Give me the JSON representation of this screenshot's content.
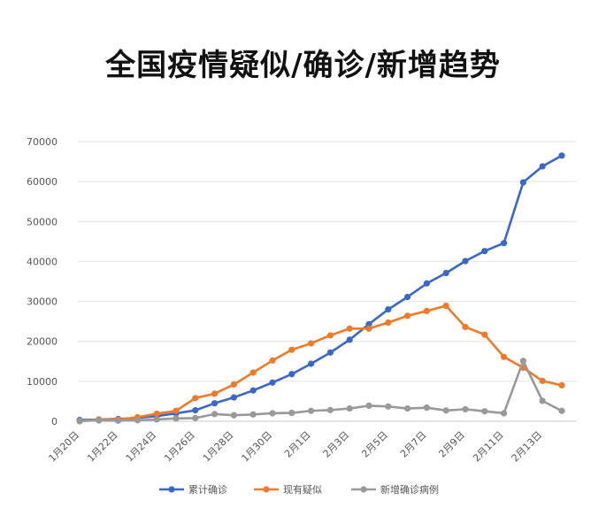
{
  "chart_data": {
    "type": "line",
    "title": "全国疫情疑似/确诊/新增趋势",
    "xlabel": "",
    "ylabel": "",
    "ylim": [
      0,
      70000
    ],
    "yticks": [
      0,
      10000,
      20000,
      30000,
      40000,
      50000,
      60000,
      70000
    ],
    "grid": true,
    "legend_position": "bottom",
    "categories": [
      "1月20日",
      "1月21日",
      "1月22日",
      "1月23日",
      "1月24日",
      "1月25日",
      "1月26日",
      "1月27日",
      "1月28日",
      "1月29日",
      "1月30日",
      "1月31日",
      "2月1日",
      "2月2日",
      "2月3日",
      "2月4日",
      "2月5日",
      "2月6日",
      "2月7日",
      "2月8日",
      "2月9日",
      "2月10日",
      "2月11日",
      "2月12日",
      "2月13日",
      "2月14日"
    ],
    "x_tick_labels": [
      "1月20日",
      "",
      "1月22日",
      "",
      "1月24日",
      "",
      "1月26日",
      "",
      "1月28日",
      "",
      "1月30日",
      "",
      "2月1日",
      "",
      "2月3日",
      "",
      "2月5日",
      "",
      "2月7日",
      "",
      "2月9日",
      "",
      "2月11日",
      "",
      "2月13日",
      ""
    ],
    "series": [
      {
        "name": "累计确诊",
        "color": "#3a68c8",
        "values": [
          300,
          440,
          570,
          830,
          1290,
          1980,
          2740,
          4500,
          5970,
          7710,
          9690,
          11800,
          14400,
          17200,
          20400,
          24300,
          28000,
          31100,
          34500,
          37100,
          40100,
          42600,
          44600,
          59800,
          63800,
          66500
        ]
      },
      {
        "name": "现有疑似",
        "color": "#ee7a2a",
        "values": [
          0,
          400,
          400,
          1000,
          1900,
          2600,
          5800,
          6900,
          9200,
          12200,
          15200,
          17900,
          19500,
          21500,
          23200,
          23200,
          24700,
          26400,
          27600,
          28900,
          23600,
          21700,
          16100,
          13400,
          10100,
          9000
        ]
      },
      {
        "name": "新增确诊病例",
        "color": "#999999",
        "values": [
          100,
          200,
          150,
          250,
          450,
          700,
          800,
          1800,
          1500,
          1700,
          2000,
          2100,
          2600,
          2800,
          3200,
          3900,
          3700,
          3200,
          3400,
          2700,
          3000,
          2500,
          2000,
          15100,
          5100,
          2600
        ]
      }
    ]
  }
}
